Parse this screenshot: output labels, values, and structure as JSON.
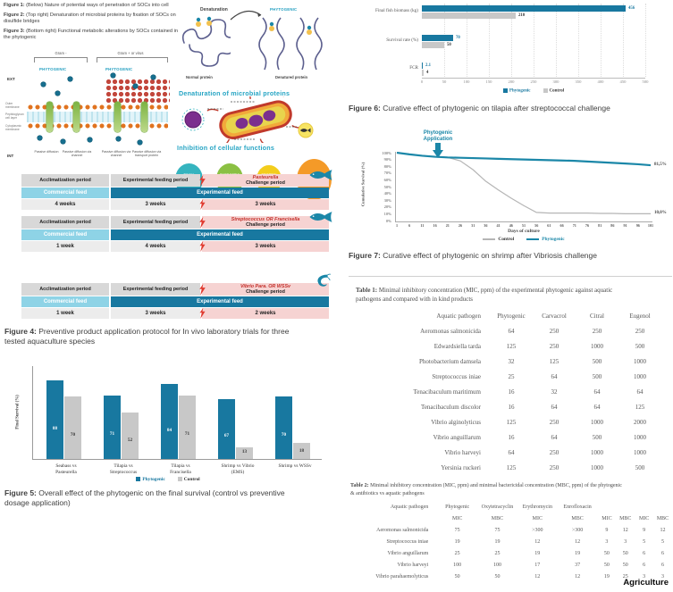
{
  "figure_notes": [
    {
      "label": "Figure 1:",
      "text": " (Below) Nature of potential ways of penetration of SOCs into cell"
    },
    {
      "label": "Figure 2:",
      "text": " (Top right) Denaturation of microbial proteins by fixation of SOCs on disulfide bridges"
    },
    {
      "label": "Figure 3:",
      "text": " (Bottom right) Functional metabolic alterations by SOCs contained in the phytogenic"
    }
  ],
  "membrane": {
    "gram_minus": "Gram -",
    "gram_plus": "Gram + or virus",
    "phytogenic": "PHYTOGENIC",
    "ext": "EXT",
    "int": "INT",
    "layers": [
      "Outer membrane",
      "Peptidoglycan cell layer",
      "Cytoplasmic membrane"
    ],
    "mechanisms": [
      "Passive diffusion",
      "Passive diffusion via channel",
      "Passive diffusion via channel",
      "Passive diffusion via transport protein"
    ]
  },
  "denaturation": {
    "arrow_label": "Denaturation",
    "phytogenic": "PHYTOGENIC",
    "normal": "Normal protein",
    "denatured": "Denatured protein",
    "heading": "Denaturation of microbial proteins"
  },
  "inhibition": {
    "heading": "Inhibition of cellular functions",
    "circles": [
      {
        "text": "Toxin expression inhibition",
        "color": "#35b4bf"
      },
      {
        "text": "Energetic metabolism alteration",
        "color": "#8bc043"
      },
      {
        "text": "Protein synthesis stop",
        "color": "#f3cd1c"
      }
    ],
    "result": {
      "text": "Pathogenic agent death",
      "color": "#f49a28"
    }
  },
  "figure4": {
    "labels": {
      "acclimatization": "Acclimatization period",
      "feeding": "Experimental feeding period",
      "challenge": "Challenge period",
      "commercial": "Commercial feed",
      "experimental": "Experimental feed"
    },
    "blocks": [
      {
        "species": "Pasteurella",
        "durations": [
          "4 weeks",
          "3 weeks",
          "3 weeks"
        ],
        "icon": "fish"
      },
      {
        "species": "Streptococcus OR Francisella",
        "durations": [
          "1 week",
          "4 weeks",
          "3 weeks"
        ],
        "icon": "fish"
      },
      {
        "species": "Vibrio Para. OR WSSv",
        "durations": [
          "1 week",
          "3 weeks",
          "2 weeks"
        ],
        "icon": "shrimp"
      }
    ],
    "caption": {
      "label": "Figure 4:",
      "text": " Preventive product application protocol for In vivo laboratory trials for three tested aquaculture species"
    }
  },
  "figure5": {
    "caption": {
      "label": "Figure 5:",
      "text": " Overall effect of the phytogenic on the final survival (control vs preventive dosage application)"
    }
  },
  "figure6": {
    "caption": {
      "label": "Figure 6:",
      "text": " Curative effect of phytogenic on tilapia after streptococcal challenge"
    }
  },
  "figure7": {
    "caption": {
      "label": "Figure 7:",
      "text": " Curative effect of phytogenic on shrimp after Vibriosis challenge"
    }
  },
  "chart_data": [
    {
      "id": "figure5",
      "type": "bar",
      "ylabel": "Final Survival (%)",
      "ylim": [
        0,
        100
      ],
      "categories": [
        [
          "Seabass vs",
          "Pasteurella"
        ],
        [
          "Tilapia vs",
          "Streptococcus"
        ],
        [
          "Tilapia vs",
          "Francisella"
        ],
        [
          "Shrimp vs Vibrio",
          "(EMS)"
        ],
        [
          "Shrimp vs WSSv",
          ""
        ]
      ],
      "series": [
        {
          "name": "Phytogenic",
          "color": "#1878a0",
          "values": [
            88,
            71,
            84,
            67,
            70
          ]
        },
        {
          "name": "Control",
          "color": "#c8c8c8",
          "values": [
            70,
            52,
            71,
            13,
            18
          ]
        }
      ],
      "legend_position": "bottom"
    },
    {
      "id": "figure6",
      "type": "bar",
      "orientation": "horizontal",
      "categories": [
        "Final fish biomass (kg)",
        "Survival rate (%)",
        "FCR"
      ],
      "series": [
        {
          "name": "Phytogenic",
          "color": "#1878a0",
          "values": [
            456,
            70,
            2.1
          ]
        },
        {
          "name": "Control",
          "color": "#c8c8c8",
          "values": [
            210,
            50,
            4
          ]
        }
      ],
      "xlim": [
        0,
        500
      ],
      "xticks": [
        0,
        50,
        100,
        150,
        200,
        250,
        300,
        350,
        400,
        450,
        500
      ],
      "grid": "dotted-vertical",
      "legend_position": "bottom"
    },
    {
      "id": "figure7",
      "type": "line",
      "xlabel": "Days of culture",
      "ylabel": "Cumulative Survival (%)",
      "ylim": [
        0,
        100
      ],
      "yticks": [
        "0%",
        "10%",
        "20%",
        "30%",
        "40%",
        "50%",
        "60%",
        "70%",
        "80%",
        "90%",
        "100%"
      ],
      "x": [
        1,
        6,
        11,
        16,
        21,
        26,
        31,
        36,
        41,
        46,
        51,
        56,
        61,
        66,
        71,
        76,
        81,
        86,
        91,
        96,
        101
      ],
      "series": [
        {
          "name": "Control",
          "color": "#b5b5b5",
          "values": [
            100,
            97.5,
            95.5,
            94,
            93,
            88,
            75,
            58,
            45,
            33,
            22,
            12,
            11,
            11,
            11,
            11,
            10.5,
            10.5,
            10,
            10,
            10
          ],
          "end_label": "10,0%"
        },
        {
          "name": "Phytogenic",
          "color": "#1b87a8",
          "values": [
            100,
            97.5,
            95.5,
            94,
            93,
            92.5,
            92,
            91.5,
            91,
            90.5,
            90,
            89.5,
            89,
            88.5,
            88,
            87,
            86,
            85,
            84,
            83,
            81.5
          ],
          "end_label": "81,5%"
        }
      ],
      "annotation": {
        "text": "Phytogenic Application",
        "x": 17
      },
      "legend_position": "bottom"
    }
  ],
  "table1": {
    "title_label": "Table 1:",
    "title_text": " Minimal inhibitory concentration (MIC, ppm) of the experimental phytogenic against aquatic pathogens and compared with in kind products",
    "headers": [
      "Aquatic pathogen",
      "Phytogenic",
      "Carvacrol",
      "Citral",
      "Eugenol"
    ],
    "rows": [
      [
        "Aeromonas salmonicida",
        "64",
        "250",
        "250",
        "250"
      ],
      [
        "Edwardsiella tarda",
        "125",
        "250",
        "1000",
        "500"
      ],
      [
        "Photobacterium damsela",
        "32",
        "125",
        "500",
        "1000"
      ],
      [
        "Streptococcus iniae",
        "25",
        "64",
        "500",
        "1000"
      ],
      [
        "Tenacibaculum maritimum",
        "16",
        "32",
        "64",
        "64"
      ],
      [
        "Tenacibaculum discolor",
        "16",
        "64",
        "64",
        "125"
      ],
      [
        "Vibrio alginolyticus",
        "125",
        "250",
        "1000",
        "2000"
      ],
      [
        "Vibrio anguillarum",
        "16",
        "64",
        "500",
        "1000"
      ],
      [
        "Vibrio harveyi",
        "64",
        "250",
        "1000",
        "1000"
      ],
      [
        "Yersinia ruckeri",
        "125",
        "250",
        "1000",
        "500"
      ]
    ]
  },
  "table2": {
    "title_label": "Table 2:",
    "title_text": " Minimal inhibitory concentration (MIC, ppm) and minimal bactericidal concentration (MBC, ppm) of the phytogenic & antibiotics vs aquatic pathogens",
    "group_headers": [
      "Aquatic pathogen",
      "Phytogenic",
      "Oxytetracyclin",
      "Erythromycin",
      "Enrofloxacin"
    ],
    "sub_headers": [
      "MIC",
      "MBC",
      "MIC",
      "MBC",
      "MIC",
      "MBC",
      "MIC",
      "MBC"
    ],
    "rows": [
      [
        "Aeromonas salmonicida",
        "75",
        "75",
        ">300",
        ">300",
        "9",
        "12",
        "9",
        "12"
      ],
      [
        "Streptococcus iniae",
        "19",
        "19",
        "12",
        "12",
        "3",
        "3",
        "5",
        "5"
      ],
      [
        "Vibrio anguillarum",
        "25",
        "25",
        "19",
        "19",
        "50",
        "50",
        "6",
        "6"
      ],
      [
        "Vibrio harveyi",
        "100",
        "100",
        "17",
        "37",
        "50",
        "50",
        "6",
        "6"
      ],
      [
        "Vibrio parahaemolyticus",
        "50",
        "50",
        "12",
        "12",
        "19",
        "25",
        "3",
        "3"
      ]
    ]
  },
  "footer": {
    "brand": "Agriculture"
  }
}
